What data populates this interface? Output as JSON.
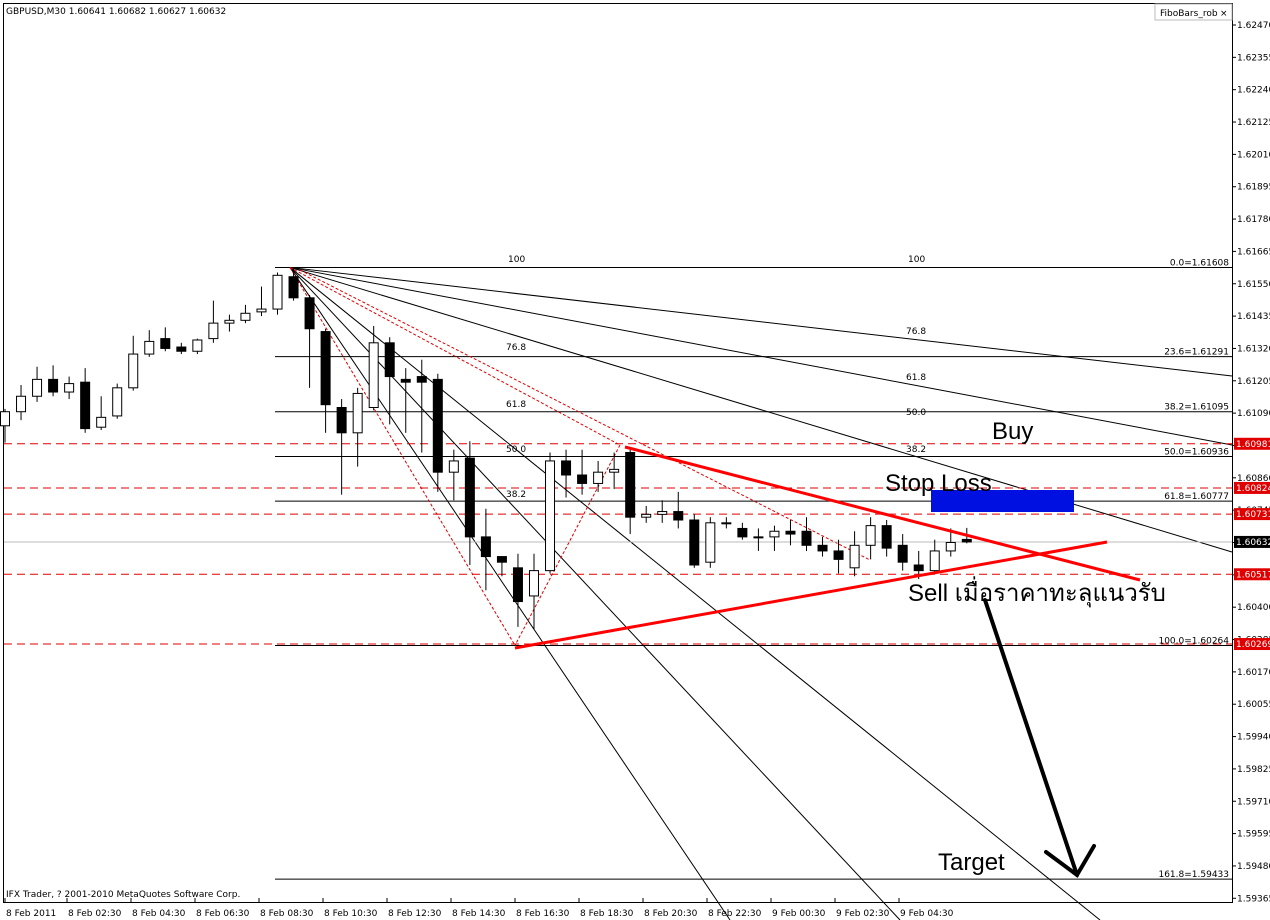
{
  "window": {
    "title": "GBPUSD,M30  1.60641 1.60682 1.60627 1.60632",
    "indicator_label": "FiboBars_rob",
    "close_glyph": "×",
    "copyright": "IFX Trader, ? 2001-2010 MetaQuotes Software Corp."
  },
  "annotations": {
    "buy": "Buy",
    "stop_loss": "Stop Loss",
    "sell": "Sell เมื่อราคาทะลุแนวรับ",
    "target": "Target"
  },
  "colors": {
    "candle_up": "#ffffff",
    "candle_down": "#000000",
    "trend_line": "#ff0000",
    "dashed_level": "#e00000",
    "stop_zone": "#0010e0",
    "price_badge": "#e00000",
    "current_badge": "#000000"
  },
  "chart_data": {
    "type": "candlestick",
    "symbol": "GBPUSD",
    "timeframe": "M30",
    "ylim": [
      1.59366,
      1.6247
    ],
    "y_ticks": [
      "1.62470",
      "1.62355",
      "1.62240",
      "1.62125",
      "1.62010",
      "1.61895",
      "1.61780",
      "1.61665",
      "1.61550",
      "1.61435",
      "1.61320",
      "1.61205",
      "1.61090",
      "1.60975",
      "1.60860",
      "1.60745",
      "1.60630",
      "1.60515",
      "1.60400",
      "1.60285",
      "1.60170",
      "1.60055",
      "1.59940",
      "1.59825",
      "1.59710",
      "1.59595",
      "1.59480",
      "1.59365"
    ],
    "x_labels": [
      "8 Feb 2011",
      "8 Feb 02:30",
      "8 Feb 04:30",
      "8 Feb 06:30",
      "8 Feb 08:30",
      "8 Feb 10:30",
      "8 Feb 12:30",
      "8 Feb 14:30",
      "8 Feb 16:30",
      "8 Feb 18:30",
      "8 Feb 20:30",
      "8 Feb 22:30",
      "9 Feb 00:30",
      "9 Feb 02:30",
      "9 Feb 04:30"
    ],
    "candles": [
      [
        1.61045,
        1.61105,
        1.60985,
        1.61095
      ],
      [
        1.61095,
        1.6119,
        1.61065,
        1.6115
      ],
      [
        1.6115,
        1.61255,
        1.6113,
        1.6121
      ],
      [
        1.6121,
        1.6126,
        1.6115,
        1.61165
      ],
      [
        1.61165,
        1.6122,
        1.6114,
        1.61195
      ],
      [
        1.612,
        1.6125,
        1.6102,
        1.61035
      ],
      [
        1.6104,
        1.6115,
        1.6103,
        1.61075
      ],
      [
        1.6108,
        1.61195,
        1.6107,
        1.6118
      ],
      [
        1.6118,
        1.61365,
        1.6117,
        1.613
      ],
      [
        1.613,
        1.61385,
        1.6129,
        1.61345
      ],
      [
        1.61355,
        1.61395,
        1.6131,
        1.6132
      ],
      [
        1.61325,
        1.6134,
        1.613,
        1.6131
      ],
      [
        1.6131,
        1.61355,
        1.613,
        1.6135
      ],
      [
        1.61355,
        1.6149,
        1.6134,
        1.6141
      ],
      [
        1.6141,
        1.6144,
        1.6138,
        1.6142
      ],
      [
        1.6142,
        1.61475,
        1.6141,
        1.61445
      ],
      [
        1.6145,
        1.6154,
        1.61435,
        1.6146
      ],
      [
        1.6146,
        1.6159,
        1.6144,
        1.6158
      ],
      [
        1.61575,
        1.61608,
        1.6149,
        1.615
      ],
      [
        1.615,
        1.6151,
        1.6118,
        1.6139
      ],
      [
        1.6138,
        1.6139,
        1.6102,
        1.6112
      ],
      [
        1.6111,
        1.6114,
        1.608,
        1.6102
      ],
      [
        1.6102,
        1.6118,
        1.609,
        1.6116
      ],
      [
        1.6111,
        1.614,
        1.611,
        1.6134
      ],
      [
        1.6134,
        1.6136,
        1.6105,
        1.6122
      ],
      [
        1.6121,
        1.6125,
        1.6102,
        1.612
      ],
      [
        1.6122,
        1.6128,
        1.6095,
        1.612
      ],
      [
        1.6121,
        1.6123,
        1.6081,
        1.6088
      ],
      [
        1.6088,
        1.6096,
        1.6078,
        1.6092
      ],
      [
        1.6093,
        1.6099,
        1.6055,
        1.6065
      ],
      [
        1.6065,
        1.6075,
        1.6046,
        1.6058
      ],
      [
        1.6058,
        1.6058,
        1.6051,
        1.6056
      ],
      [
        1.6054,
        1.6059,
        1.6033,
        1.6042
      ],
      [
        1.6044,
        1.6059,
        1.6032,
        1.6053
      ],
      [
        1.6053,
        1.6095,
        1.6052,
        1.6092
      ],
      [
        1.6092,
        1.6096,
        1.6079,
        1.6087
      ],
      [
        1.6087,
        1.6096,
        1.608,
        1.6084
      ],
      [
        1.6084,
        1.6092,
        1.6081,
        1.6088
      ],
      [
        1.6088,
        1.6095,
        1.6082,
        1.6089
      ],
      [
        1.6095,
        1.6096,
        1.6066,
        1.6072
      ],
      [
        1.6072,
        1.6076,
        1.607,
        1.6073
      ],
      [
        1.6073,
        1.6078,
        1.607,
        1.6074
      ],
      [
        1.6074,
        1.6081,
        1.6068,
        1.6071
      ],
      [
        1.6071,
        1.6073,
        1.6054,
        1.6055
      ],
      [
        1.6056,
        1.6072,
        1.6054,
        1.607
      ],
      [
        1.607,
        1.6072,
        1.6068,
        1.607
      ],
      [
        1.6068,
        1.607,
        1.6064,
        1.6065
      ],
      [
        1.6065,
        1.6068,
        1.606,
        1.6065
      ],
      [
        1.6065,
        1.6069,
        1.606,
        1.6067
      ],
      [
        1.6067,
        1.6071,
        1.6062,
        1.6066
      ],
      [
        1.6067,
        1.6072,
        1.606,
        1.6062
      ],
      [
        1.6062,
        1.6065,
        1.6058,
        1.606
      ],
      [
        1.606,
        1.6064,
        1.6052,
        1.6057
      ],
      [
        1.6054,
        1.6067,
        1.6051,
        1.6062
      ],
      [
        1.6062,
        1.6072,
        1.6057,
        1.6069
      ],
      [
        1.6069,
        1.6071,
        1.6058,
        1.6061
      ],
      [
        1.6062,
        1.6066,
        1.6053,
        1.6056
      ],
      [
        1.6055,
        1.606,
        1.605,
        1.6053
      ],
      [
        1.6053,
        1.6064,
        1.6052,
        1.606
      ],
      [
        1.606,
        1.6068,
        1.6058,
        1.6063
      ],
      [
        1.60641,
        1.60682,
        1.60627,
        1.60632
      ]
    ],
    "fibo_retracement": [
      {
        "label": "0.0=1.61608",
        "price": 1.61608
      },
      {
        "label": "23.6=1.61291",
        "price": 1.61291
      },
      {
        "label": "38.2=1.61095",
        "price": 1.61095
      },
      {
        "label": "50.0=1.60936",
        "price": 1.60936
      },
      {
        "label": "61.8=1.60777",
        "price": 1.60777
      },
      {
        "label": "100.0=1.60264",
        "price": 1.60264
      },
      {
        "label": "161.8=1.59433",
        "price": 1.59433
      }
    ],
    "fibo_fan_labels_left": [
      "100",
      "76.8",
      "61.8",
      "50.0",
      "38.2"
    ],
    "fibo_fan_labels_right": [
      "100",
      "76.8",
      "61.8",
      "50.0",
      "38.2"
    ],
    "price_levels": [
      {
        "label": "1.60981",
        "price": 1.60981,
        "style": "red"
      },
      {
        "label": "1.60824",
        "price": 1.60824,
        "style": "red"
      },
      {
        "label": "1.60731",
        "price": 1.60731,
        "style": "red"
      },
      {
        "label": "1.60632",
        "price": 1.60632,
        "style": "current"
      },
      {
        "label": "1.60517",
        "price": 1.60517,
        "style": "red"
      },
      {
        "label": "1.60269",
        "price": 1.60269,
        "style": "red"
      }
    ]
  }
}
